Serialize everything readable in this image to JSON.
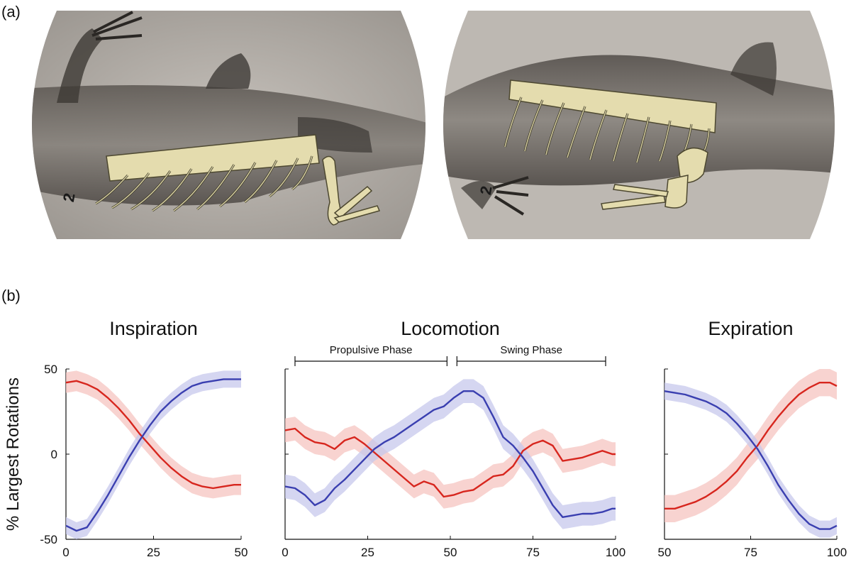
{
  "panel_a_label": "(a)",
  "panel_b_label": "(b)",
  "xray_left": {
    "marker": "2"
  },
  "xray_right": {
    "marker": "2"
  },
  "ylabel": "% Largest Rotations",
  "colors": {
    "red": "#d7261e",
    "red_band": "#f6c4c0",
    "blue": "#3a3fb0",
    "blue_band": "#c7c8ec",
    "bone": "#e4dcae",
    "bone_dark": "#4d4830"
  },
  "chart_data": [
    {
      "type": "line",
      "title": "Inspiration",
      "x_ticks": [
        "0",
        "25",
        "50"
      ],
      "y_ticks": [
        "50",
        "0",
        "-50"
      ],
      "xlim": [
        0,
        50
      ],
      "ylim": [
        -50,
        50
      ],
      "series": [
        {
          "color": "red",
          "x": [
            0,
            3,
            6,
            9,
            12,
            15,
            18,
            21,
            24,
            27,
            30,
            33,
            36,
            39,
            42,
            45,
            48,
            50
          ],
          "y": [
            42,
            43,
            41,
            38,
            33,
            27,
            20,
            12,
            5,
            -2,
            -8,
            -13,
            -17,
            -19,
            -20,
            -19,
            -18,
            -18
          ],
          "band": 6
        },
        {
          "color": "blue",
          "x": [
            0,
            3,
            6,
            9,
            12,
            15,
            18,
            21,
            24,
            27,
            30,
            33,
            36,
            39,
            42,
            45,
            48,
            50
          ],
          "y": [
            -42,
            -45,
            -43,
            -34,
            -24,
            -13,
            -2,
            8,
            17,
            25,
            31,
            36,
            40,
            42,
            43,
            44,
            44,
            44
          ],
          "band": 5
        }
      ]
    },
    {
      "type": "line",
      "title": "Locomotion",
      "x_ticks": [
        "0",
        "25",
        "50",
        "75",
        "100"
      ],
      "xlim": [
        0,
        100
      ],
      "ylim": [
        -50,
        50
      ],
      "phases": [
        {
          "label": "Propulsive Phase",
          "start": 3,
          "end": 49
        },
        {
          "label": "Swing Phase",
          "start": 52,
          "end": 97
        }
      ],
      "series": [
        {
          "color": "red",
          "x": [
            0,
            3,
            6,
            9,
            12,
            15,
            18,
            21,
            24,
            27,
            30,
            33,
            36,
            39,
            42,
            45,
            48,
            51,
            54,
            57,
            60,
            63,
            66,
            69,
            72,
            75,
            78,
            81,
            84,
            87,
            90,
            93,
            96,
            99,
            100
          ],
          "y": [
            14,
            15,
            10,
            7,
            6,
            3,
            8,
            10,
            6,
            1,
            -4,
            -9,
            -14,
            -19,
            -16,
            -18,
            -25,
            -24,
            -22,
            -21,
            -17,
            -13,
            -12,
            -7,
            2,
            6,
            8,
            5,
            -4,
            -3,
            -2,
            0,
            2,
            0,
            0
          ],
          "band": 7
        },
        {
          "color": "blue",
          "x": [
            0,
            3,
            6,
            9,
            12,
            15,
            18,
            21,
            24,
            27,
            30,
            33,
            36,
            39,
            42,
            45,
            48,
            51,
            54,
            57,
            60,
            63,
            66,
            69,
            72,
            75,
            78,
            81,
            84,
            87,
            90,
            93,
            96,
            99,
            100
          ],
          "y": [
            -19,
            -20,
            -24,
            -30,
            -27,
            -20,
            -15,
            -9,
            -3,
            3,
            7,
            10,
            14,
            18,
            22,
            26,
            28,
            33,
            37,
            37,
            33,
            22,
            10,
            5,
            -2,
            -10,
            -20,
            -30,
            -37,
            -36,
            -35,
            -35,
            -34,
            -32,
            -32
          ],
          "band": 7
        }
      ]
    },
    {
      "type": "line",
      "title": "Expiration",
      "x_ticks": [
        "50",
        "75",
        "100"
      ],
      "xlim": [
        50,
        100
      ],
      "ylim": [
        -50,
        50
      ],
      "series": [
        {
          "color": "red",
          "x": [
            50,
            53,
            56,
            59,
            62,
            65,
            68,
            71,
            74,
            77,
            80,
            83,
            86,
            89,
            92,
            95,
            98,
            100
          ],
          "y": [
            -32,
            -32,
            -30,
            -28,
            -25,
            -21,
            -16,
            -10,
            -2,
            5,
            14,
            22,
            29,
            35,
            39,
            42,
            42,
            40
          ],
          "band": 8
        },
        {
          "color": "blue",
          "x": [
            50,
            53,
            56,
            59,
            62,
            65,
            68,
            71,
            74,
            77,
            80,
            83,
            86,
            89,
            92,
            95,
            98,
            100
          ],
          "y": [
            37,
            36,
            35,
            33,
            31,
            28,
            24,
            18,
            11,
            3,
            -7,
            -18,
            -27,
            -35,
            -41,
            -44,
            -44,
            -42
          ],
          "band": 5
        }
      ]
    }
  ]
}
